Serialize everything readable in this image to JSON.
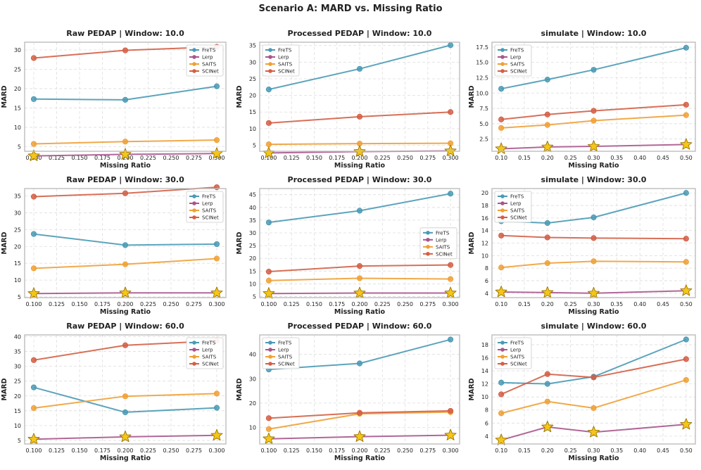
{
  "suptitle": "Scenario A: MARD vs. Missing Ratio",
  "colors": {
    "FreTS": "#4a9ab5",
    "Lerp": "#a9568c",
    "SAITS": "#f0a035",
    "SCINet": "#d45f45",
    "star": "#f5c518"
  },
  "chart_data": [
    {
      "type": "line",
      "title": "Raw PEDAP | Window: 10.0",
      "xlabel": "Missing Ratio",
      "ylabel": "MARD",
      "xlim": [
        0.09,
        0.31
      ],
      "ylim": [
        3.8,
        32
      ],
      "xticks": [
        0.1,
        0.125,
        0.15,
        0.175,
        0.2,
        0.225,
        0.25,
        0.275,
        0.3
      ],
      "xtick_labels": [
        "0.100",
        "0.125",
        "0.150",
        "0.175",
        "0.200",
        "0.225",
        "0.250",
        "0.275",
        "0.300"
      ],
      "yticks": [
        5,
        10,
        15,
        20,
        25,
        30
      ],
      "ytick_labels": [
        "5",
        "10",
        "15",
        "20",
        "25",
        "30"
      ],
      "legend": "upper-right",
      "x": [
        0.1,
        0.2,
        0.3
      ],
      "series": [
        {
          "name": "FreTS",
          "values": [
            17.3,
            17.1,
            20.6
          ]
        },
        {
          "name": "Lerp",
          "values": [
            2.6,
            3.0,
            3.2
          ]
        },
        {
          "name": "SAITS",
          "values": [
            5.7,
            6.3,
            6.7
          ]
        },
        {
          "name": "SCINet",
          "values": [
            27.9,
            29.9,
            30.8
          ]
        }
      ],
      "best": [
        2.6,
        3.0,
        3.2
      ]
    },
    {
      "type": "line",
      "title": "Processed PEDAP | Window: 10.0",
      "xlabel": "Missing Ratio",
      "ylabel": "MARD",
      "xlim": [
        0.09,
        0.31
      ],
      "ylim": [
        3.2,
        36
      ],
      "xticks": [
        0.1,
        0.125,
        0.15,
        0.175,
        0.2,
        0.225,
        0.25,
        0.275,
        0.3
      ],
      "xtick_labels": [
        "0.100",
        "0.125",
        "0.150",
        "0.175",
        "0.200",
        "0.225",
        "0.250",
        "0.275",
        "0.300"
      ],
      "yticks": [
        5,
        10,
        15,
        20,
        25,
        30,
        35
      ],
      "ytick_labels": [
        "5",
        "10",
        "15",
        "20",
        "25",
        "30",
        "35"
      ],
      "legend": "upper-left",
      "x": [
        0.1,
        0.2,
        0.3
      ],
      "series": [
        {
          "name": "FreTS",
          "values": [
            21.8,
            28.0,
            35.1
          ]
        },
        {
          "name": "Lerp",
          "values": [
            2.7,
            3.1,
            3.3
          ]
        },
        {
          "name": "SAITS",
          "values": [
            5.3,
            5.5,
            5.6
          ]
        },
        {
          "name": "SCINet",
          "values": [
            11.7,
            13.6,
            15.0
          ]
        }
      ],
      "best": [
        2.7,
        3.1,
        3.3
      ]
    },
    {
      "type": "line",
      "title": "simulate | Window: 10.0",
      "xlabel": "Missing Ratio",
      "ylabel": "MARD",
      "xlim": [
        0.08,
        0.52
      ],
      "ylim": [
        0.5,
        18.3
      ],
      "xticks": [
        0.1,
        0.15,
        0.2,
        0.25,
        0.3,
        0.35,
        0.4,
        0.45,
        0.5
      ],
      "xtick_labels": [
        "0.10",
        "0.15",
        "0.20",
        "0.25",
        "0.30",
        "0.35",
        "0.40",
        "0.45",
        "0.50"
      ],
      "yticks": [
        2.5,
        5,
        7.5,
        10,
        12.5,
        15,
        17.5
      ],
      "ytick_labels": [
        "2.5",
        "5.0",
        "7.5",
        "10.0",
        "12.5",
        "15.0",
        "17.5"
      ],
      "legend": "upper-left",
      "x": [
        0.1,
        0.2,
        0.3,
        0.5
      ],
      "series": [
        {
          "name": "FreTS",
          "values": [
            10.7,
            12.2,
            13.8,
            17.4
          ]
        },
        {
          "name": "Lerp",
          "values": [
            0.9,
            1.2,
            1.3,
            1.6
          ]
        },
        {
          "name": "SAITS",
          "values": [
            4.3,
            4.8,
            5.5,
            6.4
          ]
        },
        {
          "name": "SCINet",
          "values": [
            5.7,
            6.5,
            7.1,
            8.1
          ]
        }
      ],
      "best": [
        0.9,
        1.2,
        1.3,
        1.6
      ]
    },
    {
      "type": "line",
      "title": "Raw PEDAP | Window: 30.0",
      "xlabel": "Missing Ratio",
      "ylabel": "MARD",
      "xlim": [
        0.09,
        0.31
      ],
      "ylim": [
        4.8,
        37.2
      ],
      "xticks": [
        0.1,
        0.125,
        0.15,
        0.175,
        0.2,
        0.225,
        0.25,
        0.275,
        0.3
      ],
      "xtick_labels": [
        "0.100",
        "0.125",
        "0.150",
        "0.175",
        "0.200",
        "0.225",
        "0.250",
        "0.275",
        "0.300"
      ],
      "yticks": [
        5,
        10,
        15,
        20,
        25,
        30,
        35
      ],
      "ytick_labels": [
        "5",
        "10",
        "15",
        "20",
        "25",
        "30",
        "35"
      ],
      "legend": "upper-right",
      "x": [
        0.1,
        0.2,
        0.3
      ],
      "series": [
        {
          "name": "FreTS",
          "values": [
            23.7,
            20.4,
            20.7
          ]
        },
        {
          "name": "Lerp",
          "values": [
            6.0,
            6.2,
            6.2
          ]
        },
        {
          "name": "SAITS",
          "values": [
            13.5,
            14.7,
            16.4
          ]
        },
        {
          "name": "SCINet",
          "values": [
            34.8,
            35.8,
            37.6
          ]
        }
      ],
      "best": [
        6.0,
        6.2,
        6.2
      ]
    },
    {
      "type": "line",
      "title": "Processed PEDAP | Window: 30.0",
      "xlabel": "Missing Ratio",
      "ylabel": "MARD",
      "xlim": [
        0.09,
        0.31
      ],
      "ylim": [
        4.6,
        47.4
      ],
      "xticks": [
        0.1,
        0.125,
        0.15,
        0.175,
        0.2,
        0.225,
        0.25,
        0.275,
        0.3
      ],
      "xtick_labels": [
        "0.100",
        "0.125",
        "0.150",
        "0.175",
        "0.200",
        "0.225",
        "0.250",
        "0.275",
        "0.300"
      ],
      "yticks": [
        5,
        10,
        15,
        20,
        25,
        30,
        35,
        40,
        45
      ],
      "ytick_labels": [
        "5",
        "10",
        "15",
        "20",
        "25",
        "30",
        "35",
        "40",
        "45"
      ],
      "legend": "center-right",
      "x": [
        0.1,
        0.2,
        0.3
      ],
      "series": [
        {
          "name": "FreTS",
          "values": [
            34.1,
            38.7,
            45.4
          ]
        },
        {
          "name": "Lerp",
          "values": [
            6.2,
            6.4,
            6.4
          ]
        },
        {
          "name": "SAITS",
          "values": [
            11.3,
            12.2,
            11.9
          ]
        },
        {
          "name": "SCINet",
          "values": [
            14.8,
            17.0,
            17.4
          ]
        }
      ],
      "best": [
        6.2,
        6.4,
        6.4
      ]
    },
    {
      "type": "line",
      "title": "simulate | Window: 30.0",
      "xlabel": "Missing Ratio",
      "ylabel": "MARD",
      "xlim": [
        0.08,
        0.52
      ],
      "ylim": [
        3.3,
        20.7
      ],
      "xticks": [
        0.1,
        0.15,
        0.2,
        0.25,
        0.3,
        0.35,
        0.4,
        0.45,
        0.5
      ],
      "xtick_labels": [
        "0.10",
        "0.15",
        "0.20",
        "0.25",
        "0.30",
        "0.35",
        "0.40",
        "0.45",
        "0.50"
      ],
      "yticks": [
        4,
        6,
        8,
        10,
        12,
        14,
        16,
        18,
        20
      ],
      "ytick_labels": [
        "4",
        "6",
        "8",
        "10",
        "12",
        "14",
        "16",
        "18",
        "20"
      ],
      "legend": "upper-left",
      "x": [
        0.1,
        0.2,
        0.3,
        0.5
      ],
      "series": [
        {
          "name": "FreTS",
          "values": [
            15.5,
            15.2,
            16.1,
            20.0
          ]
        },
        {
          "name": "Lerp",
          "values": [
            4.2,
            4.1,
            4.0,
            4.4
          ]
        },
        {
          "name": "SAITS",
          "values": [
            8.1,
            8.8,
            9.1,
            9.0
          ]
        },
        {
          "name": "SCINet",
          "values": [
            13.2,
            12.9,
            12.8,
            12.7
          ]
        }
      ],
      "best": [
        4.2,
        4.1,
        4.0,
        4.4
      ]
    },
    {
      "type": "line",
      "title": "Raw PEDAP | Window: 60.0",
      "xlabel": "Missing Ratio",
      "ylabel": "MARD",
      "xlim": [
        0.09,
        0.31
      ],
      "ylim": [
        3.8,
        40.6
      ],
      "xticks": [
        0.1,
        0.125,
        0.15,
        0.175,
        0.2,
        0.225,
        0.25,
        0.275,
        0.3
      ],
      "xtick_labels": [
        "0.100",
        "0.125",
        "0.150",
        "0.175",
        "0.200",
        "0.225",
        "0.250",
        "0.275",
        "0.300"
      ],
      "yticks": [
        5,
        10,
        15,
        20,
        25,
        30,
        35,
        40
      ],
      "ytick_labels": [
        "5",
        "10",
        "15",
        "20",
        "25",
        "30",
        "35",
        "40"
      ],
      "legend": "upper-right",
      "x": [
        0.1,
        0.2,
        0.3
      ],
      "series": [
        {
          "name": "FreTS",
          "values": [
            22.9,
            14.5,
            16.0
          ]
        },
        {
          "name": "Lerp",
          "values": [
            5.4,
            6.2,
            6.7
          ]
        },
        {
          "name": "SAITS",
          "values": [
            15.9,
            19.9,
            20.8
          ]
        },
        {
          "name": "SCINet",
          "values": [
            32.1,
            37.1,
            38.6
          ]
        }
      ],
      "best": [
        5.4,
        6.2,
        6.7
      ]
    },
    {
      "type": "line",
      "title": "Processed PEDAP | Window: 60.0",
      "xlabel": "Missing Ratio",
      "ylabel": "MARD",
      "xlim": [
        0.09,
        0.31
      ],
      "ylim": [
        3.2,
        48.0
      ],
      "xticks": [
        0.1,
        0.125,
        0.15,
        0.175,
        0.2,
        0.225,
        0.25,
        0.275,
        0.3
      ],
      "xtick_labels": [
        "0.100",
        "0.125",
        "0.150",
        "0.175",
        "0.200",
        "0.225",
        "0.250",
        "0.275",
        "0.300"
      ],
      "yticks": [
        10,
        20,
        30,
        40
      ],
      "ytick_labels": [
        "10",
        "20",
        "30",
        "40"
      ],
      "legend": "upper-left",
      "x": [
        0.1,
        0.2,
        0.3
      ],
      "series": [
        {
          "name": "FreTS",
          "values": [
            33.8,
            36.3,
            46.1
          ]
        },
        {
          "name": "Lerp",
          "values": [
            5.3,
            6.2,
            6.8
          ]
        },
        {
          "name": "SAITS",
          "values": [
            9.3,
            15.6,
            16.3
          ]
        },
        {
          "name": "SCINet",
          "values": [
            13.8,
            16.0,
            16.8
          ]
        }
      ],
      "best": [
        5.3,
        6.2,
        6.8
      ]
    },
    {
      "type": "line",
      "title": "simulate | Window: 60.0",
      "xlabel": "Missing Ratio",
      "ylabel": "MARD",
      "xlim": [
        0.08,
        0.52
      ],
      "ylim": [
        2.8,
        19.5
      ],
      "xticks": [
        0.1,
        0.15,
        0.2,
        0.25,
        0.3,
        0.35,
        0.4,
        0.45,
        0.5
      ],
      "xtick_labels": [
        "0.10",
        "0.15",
        "0.20",
        "0.25",
        "0.30",
        "0.35",
        "0.40",
        "0.45",
        "0.50"
      ],
      "yticks": [
        4,
        6,
        8,
        10,
        12,
        14,
        16,
        18
      ],
      "ytick_labels": [
        "4",
        "6",
        "8",
        "10",
        "12",
        "14",
        "16",
        "18"
      ],
      "legend": "upper-left",
      "x": [
        0.1,
        0.2,
        0.3,
        0.5
      ],
      "series": [
        {
          "name": "FreTS",
          "values": [
            12.2,
            12.0,
            13.1,
            18.8
          ]
        },
        {
          "name": "Lerp",
          "values": [
            3.4,
            5.4,
            4.6,
            5.8
          ]
        },
        {
          "name": "SAITS",
          "values": [
            7.5,
            9.3,
            8.3,
            12.6
          ]
        },
        {
          "name": "SCINet",
          "values": [
            10.4,
            13.5,
            13.0,
            15.8
          ]
        }
      ],
      "best": [
        3.4,
        5.4,
        4.6,
        5.8
      ]
    }
  ]
}
